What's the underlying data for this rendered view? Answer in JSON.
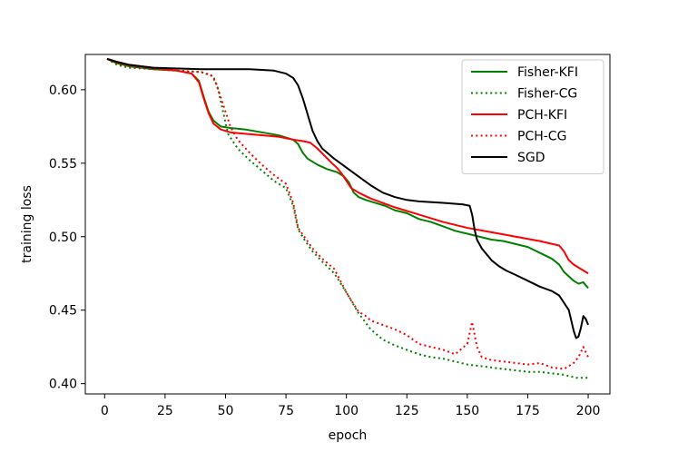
{
  "chart_data": {
    "type": "line",
    "title": "",
    "xlabel": "epoch",
    "ylabel": "training loss",
    "xlim": [
      -8,
      209
    ],
    "ylim": [
      0.393,
      0.624
    ],
    "xticks": [
      0,
      25,
      50,
      75,
      100,
      125,
      150,
      175,
      200
    ],
    "yticks": [
      0.4,
      0.45,
      0.5,
      0.55,
      0.6
    ],
    "xtick_labels": [
      "0",
      "25",
      "50",
      "75",
      "100",
      "125",
      "150",
      "175",
      "200"
    ],
    "ytick_labels": [
      "0.40",
      "0.45",
      "0.50",
      "0.55",
      "0.60"
    ],
    "grid": false,
    "legend_position": "top-right",
    "series": [
      {
        "name": "Fisher-KFI",
        "color": "#008000",
        "style": "solid",
        "x": [
          1,
          5,
          10,
          20,
          30,
          36,
          39,
          41,
          43,
          45,
          48,
          52,
          58,
          65,
          72,
          78,
          80,
          82,
          84,
          86,
          88,
          92,
          96,
          99,
          101,
          103,
          105,
          108,
          112,
          116,
          120,
          125,
          130,
          135,
          140,
          145,
          150,
          155,
          160,
          165,
          170,
          175,
          180,
          185,
          188,
          190,
          192,
          194,
          196,
          198,
          200
        ],
        "y": [
          0.621,
          0.618,
          0.616,
          0.614,
          0.613,
          0.611,
          0.606,
          0.595,
          0.585,
          0.579,
          0.575,
          0.574,
          0.573,
          0.571,
          0.569,
          0.566,
          0.563,
          0.557,
          0.553,
          0.551,
          0.549,
          0.546,
          0.544,
          0.541,
          0.537,
          0.53,
          0.527,
          0.525,
          0.523,
          0.521,
          0.518,
          0.516,
          0.512,
          0.51,
          0.507,
          0.504,
          0.502,
          0.5,
          0.498,
          0.497,
          0.495,
          0.493,
          0.489,
          0.485,
          0.481,
          0.476,
          0.473,
          0.47,
          0.468,
          0.469,
          0.465
        ]
      },
      {
        "name": "Fisher-CG",
        "color": "#008000",
        "style": "dotted",
        "x": [
          1,
          5,
          10,
          20,
          30,
          40,
          45,
          47,
          49,
          51,
          55,
          60,
          65,
          70,
          75,
          78,
          80,
          83,
          86,
          90,
          95,
          100,
          105,
          110,
          115,
          120,
          125,
          130,
          135,
          140,
          145,
          150,
          155,
          160,
          165,
          170,
          175,
          180,
          185,
          190,
          195,
          200
        ],
        "y": [
          0.621,
          0.617,
          0.615,
          0.614,
          0.613,
          0.612,
          0.609,
          0.6,
          0.585,
          0.57,
          0.56,
          0.552,
          0.545,
          0.538,
          0.533,
          0.521,
          0.505,
          0.497,
          0.49,
          0.483,
          0.475,
          0.462,
          0.448,
          0.437,
          0.43,
          0.426,
          0.423,
          0.42,
          0.418,
          0.417,
          0.415,
          0.413,
          0.412,
          0.411,
          0.41,
          0.409,
          0.408,
          0.408,
          0.407,
          0.406,
          0.404,
          0.404
        ]
      },
      {
        "name": "PCH-KFI",
        "color": "#ff0000",
        "style": "solid",
        "x": [
          1,
          5,
          10,
          20,
          30,
          36,
          39,
          41,
          43,
          45,
          48,
          52,
          58,
          65,
          72,
          78,
          82,
          85,
          88,
          91,
          94,
          96,
          98,
          100,
          102,
          105,
          110,
          115,
          120,
          130,
          140,
          150,
          160,
          170,
          180,
          188,
          190,
          192,
          194,
          196,
          198,
          200
        ],
        "y": [
          0.621,
          0.619,
          0.617,
          0.615,
          0.613,
          0.611,
          0.605,
          0.594,
          0.584,
          0.577,
          0.573,
          0.571,
          0.57,
          0.569,
          0.568,
          0.566,
          0.565,
          0.564,
          0.56,
          0.555,
          0.55,
          0.547,
          0.543,
          0.538,
          0.533,
          0.53,
          0.526,
          0.523,
          0.52,
          0.515,
          0.51,
          0.506,
          0.503,
          0.5,
          0.497,
          0.494,
          0.49,
          0.484,
          0.481,
          0.479,
          0.477,
          0.475
        ]
      },
      {
        "name": "PCH-CG",
        "color": "#ff0000",
        "style": "dotted",
        "x": [
          1,
          5,
          10,
          20,
          30,
          40,
          44,
          46,
          48,
          50,
          52,
          55,
          60,
          65,
          70,
          75,
          78,
          80,
          83,
          86,
          90,
          95,
          100,
          103,
          105,
          108,
          110,
          115,
          120,
          125,
          130,
          135,
          140,
          145,
          150,
          152,
          154,
          156,
          160,
          165,
          170,
          175,
          180,
          185,
          190,
          192,
          194,
          196,
          198,
          200
        ],
        "y": [
          0.621,
          0.618,
          0.616,
          0.614,
          0.613,
          0.612,
          0.61,
          0.605,
          0.595,
          0.585,
          0.575,
          0.566,
          0.557,
          0.549,
          0.542,
          0.536,
          0.523,
          0.506,
          0.499,
          0.492,
          0.485,
          0.478,
          0.462,
          0.454,
          0.449,
          0.446,
          0.443,
          0.44,
          0.437,
          0.433,
          0.427,
          0.425,
          0.423,
          0.42,
          0.427,
          0.442,
          0.425,
          0.418,
          0.416,
          0.415,
          0.414,
          0.413,
          0.414,
          0.411,
          0.41,
          0.412,
          0.414,
          0.418,
          0.425,
          0.418
        ]
      },
      {
        "name": "SGD",
        "color": "#000000",
        "style": "solid",
        "x": [
          1,
          5,
          10,
          20,
          40,
          60,
          70,
          75,
          78,
          80,
          82,
          84,
          86,
          88,
          90,
          95,
          100,
          105,
          110,
          115,
          120,
          125,
          130,
          140,
          148,
          151,
          152,
          153,
          154,
          156,
          158,
          160,
          163,
          166,
          170,
          175,
          180,
          185,
          188,
          190,
          192,
          193,
          194,
          195,
          196,
          197,
          198,
          199,
          200
        ],
        "y": [
          0.621,
          0.619,
          0.617,
          0.615,
          0.614,
          0.614,
          0.613,
          0.611,
          0.608,
          0.603,
          0.594,
          0.583,
          0.572,
          0.565,
          0.56,
          0.553,
          0.547,
          0.541,
          0.535,
          0.53,
          0.527,
          0.525,
          0.524,
          0.523,
          0.522,
          0.521,
          0.515,
          0.505,
          0.498,
          0.492,
          0.488,
          0.484,
          0.48,
          0.477,
          0.474,
          0.47,
          0.466,
          0.463,
          0.46,
          0.455,
          0.45,
          0.443,
          0.436,
          0.431,
          0.432,
          0.438,
          0.446,
          0.444,
          0.44
        ]
      }
    ]
  }
}
